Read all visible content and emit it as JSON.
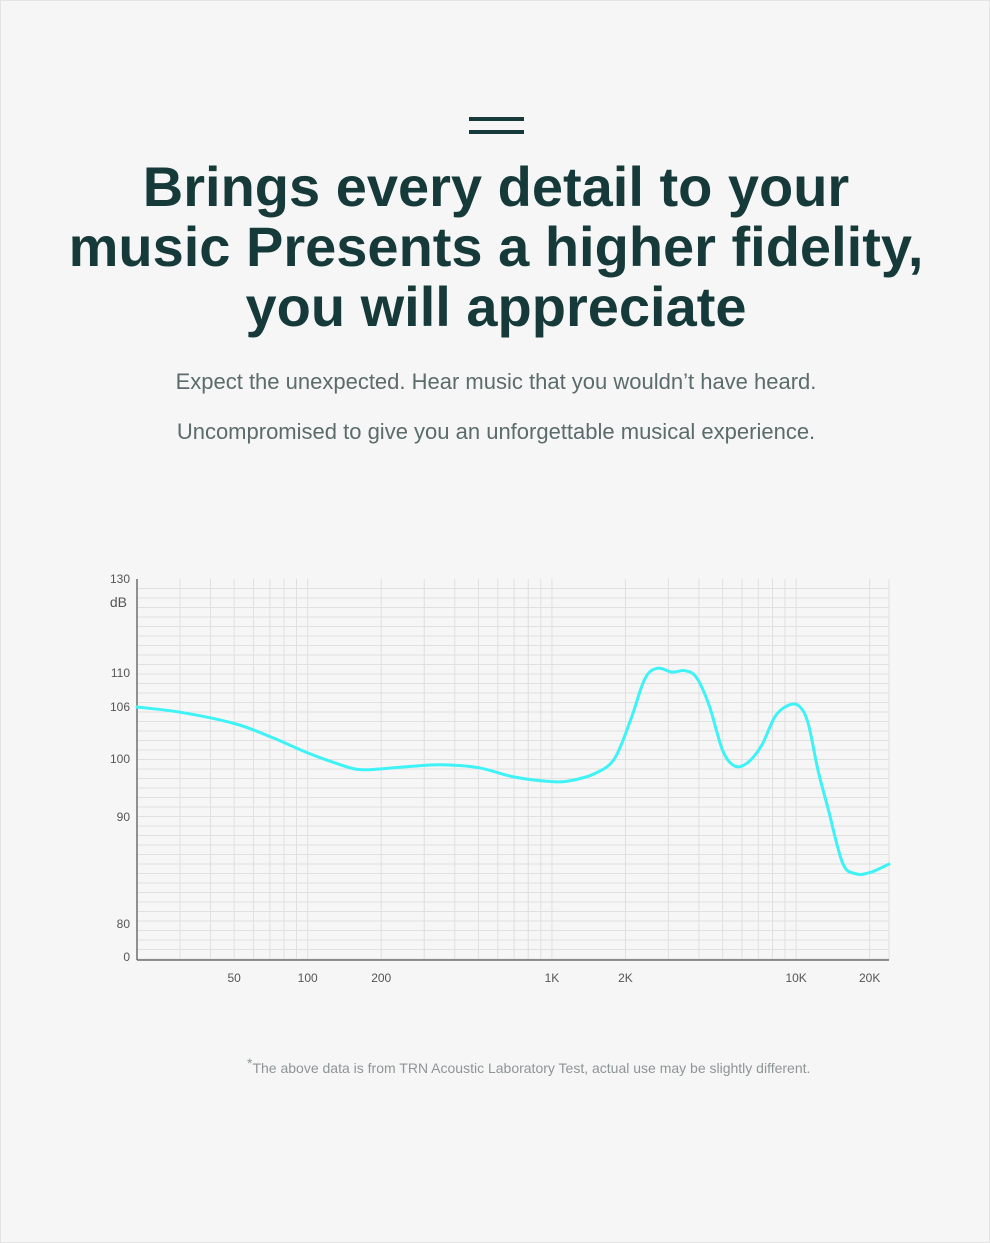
{
  "header": {
    "title_lines": [
      "Brings every detail to your",
      "music Presents a higher fidelity,",
      "you will appreciate"
    ],
    "subtitle_lines": [
      "Expect the unexpected. Hear music that you wouldn’t have heard.",
      "Uncompromised to give you an unforgettable musical experience."
    ]
  },
  "footnote": {
    "mark": "*",
    "text": "The above data is from TRN Acoustic Laboratory Test, actual use may be slightly different."
  },
  "chart_data": {
    "type": "line",
    "title": "",
    "xlabel": "",
    "ylabel": "dB",
    "x_scale": "log",
    "xlim": [
      20,
      24000
    ],
    "ylim": [
      0,
      130
    ],
    "grid": true,
    "y_ticks": [
      {
        "value": 130,
        "label": "130"
      },
      {
        "value": 110,
        "label": "110"
      },
      {
        "value": 106,
        "label": "106"
      },
      {
        "value": 100,
        "label": "100"
      },
      {
        "value": 90,
        "label": "90"
      },
      {
        "value": 80,
        "label": "80"
      },
      {
        "value": 0,
        "label": "0"
      }
    ],
    "x_ticks": [
      {
        "value": 50,
        "label": "50"
      },
      {
        "value": 100,
        "label": "100"
      },
      {
        "value": 200,
        "label": "200"
      },
      {
        "value": 1000,
        "label": "1K"
      },
      {
        "value": 2000,
        "label": "2K"
      },
      {
        "value": 10000,
        "label": "10K"
      },
      {
        "value": 20000,
        "label": "20K"
      }
    ],
    "colors": {
      "line": "#3ef2f5",
      "grid": "#e0e0e0",
      "axis": "#6e6e6e",
      "text": "#555555"
    },
    "series": [
      {
        "x": [
          20,
          30,
          50,
          70,
          100,
          130,
          160,
          200,
          260,
          350,
          500,
          700,
          1000,
          1200,
          1500,
          1800,
          2100,
          2400,
          2700,
          3100,
          3500,
          3900,
          4400,
          5000,
          5600,
          6300,
          7200,
          8200,
          9300,
          10300,
          11200,
          12300,
          13500,
          15500,
          17500,
          20000,
          24000
        ],
        "y": [
          106,
          105.4,
          104.1,
          102.6,
          100.7,
          99.3,
          98.2,
          98.3,
          98.7,
          99,
          98.5,
          96.9,
          96.1,
          96.3,
          97.5,
          100,
          104.5,
          109.3,
          111,
          110.2,
          110.5,
          109.5,
          106.2,
          101,
          98.8,
          99.3,
          101.5,
          104.9,
          106.2,
          106.1,
          104.1,
          98,
          91.5,
          85.7,
          84.7,
          84.8,
          85.6
        ]
      }
    ]
  }
}
